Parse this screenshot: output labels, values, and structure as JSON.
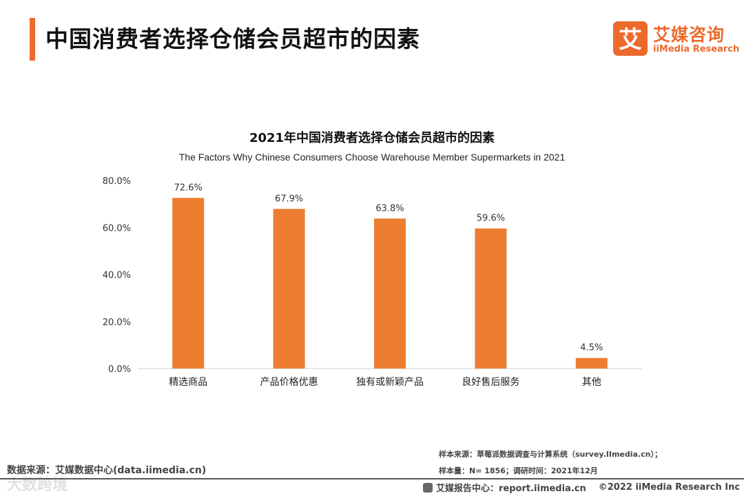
{
  "header": {
    "title": "中国消费者选择仓储会员超市的因素",
    "accent_color": "#ec6a2c"
  },
  "logo": {
    "mark": "艾",
    "name_cn": "艾媒咨询",
    "name_en": "iiMedia Research"
  },
  "chart_data": {
    "type": "bar",
    "title": "2021年中国消费者选择仓储会员超市的因素",
    "subtitle": "The Factors Why Chinese Consumers Choose Warehouse Member Supermarkets in 2021",
    "categories": [
      "精选商品",
      "产品价格优惠",
      "独有或新颖产品",
      "良好售后服务",
      "其他"
    ],
    "values": [
      72.6,
      67.9,
      63.8,
      59.6,
      4.5
    ],
    "data_labels": [
      "72.6%",
      "67.9%",
      "63.8%",
      "59.6%",
      "4.5%"
    ],
    "y_ticks": [
      0,
      20,
      40,
      60,
      80
    ],
    "y_tick_labels": [
      "0.0%",
      "20.0%",
      "40.0%",
      "60.0%",
      "80.0%"
    ],
    "ylim": [
      0,
      80
    ],
    "bar_color": "#ed7d31",
    "grid": false,
    "xlabel": "",
    "ylabel": ""
  },
  "footer": {
    "source_left": "数据来源：艾媒数据中心(data.iimedia.cn)",
    "sample_source": "样本来源：草莓派数据调查与计算系统（survey.IImedia.cn）；",
    "sample_size": "样本量：N= 1856；调研时间：2021年12月",
    "report_center": "艾媒报告中心：report.iimedia.cn",
    "copyright": "©2022  iiMedia Research  Inc",
    "watermark": "大数跨境"
  }
}
